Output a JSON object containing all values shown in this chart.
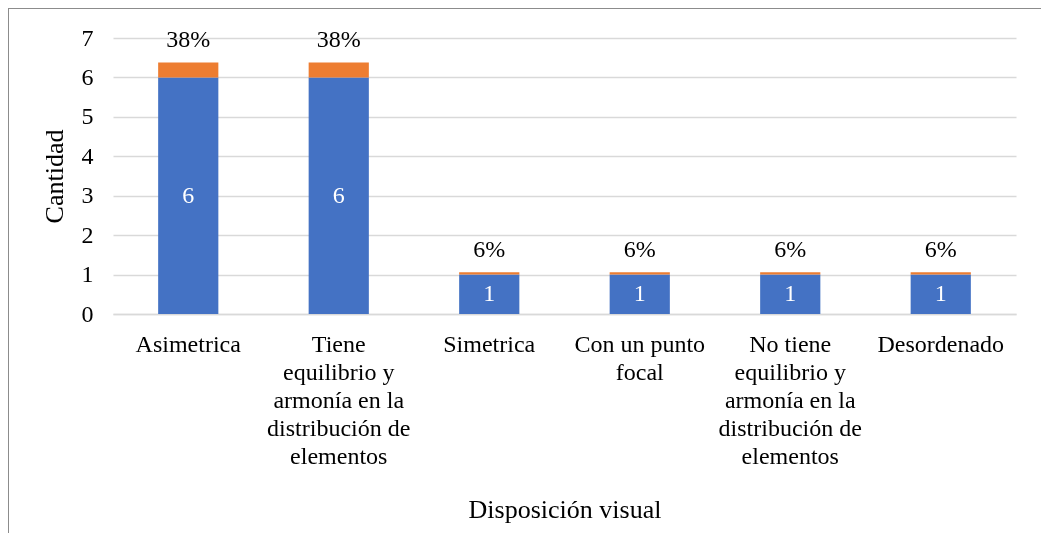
{
  "chart_data": {
    "type": "bar",
    "xlabel": "Disposición visual",
    "ylabel": "Cantidad",
    "categories": [
      "Asimetrica",
      "Tiene equilibrio y armonía en la distribución de elementos",
      "Simetrica",
      "Con un punto focal",
      "No tiene equilibrio y armonía en la distribución de elementos",
      "Desordenado"
    ],
    "series": [
      {
        "color": "#4472c4",
        "values": [
          6,
          6,
          1,
          1,
          1,
          1
        ],
        "value_labels": [
          "6",
          "6",
          "1",
          "1",
          "1",
          "1"
        ]
      },
      {
        "color": "#ed7d31",
        "values": [
          0.38,
          0.38,
          0.06,
          0.06,
          0.06,
          0.06
        ],
        "value_labels": [
          "38%",
          "38%",
          "6%",
          "6%",
          "6%",
          "6%"
        ]
      }
    ],
    "stacked": true,
    "ylim": [
      0,
      7
    ],
    "yticks": [
      0,
      1,
      2,
      3,
      4,
      5,
      6,
      7
    ],
    "grid": "y",
    "legend": false
  }
}
